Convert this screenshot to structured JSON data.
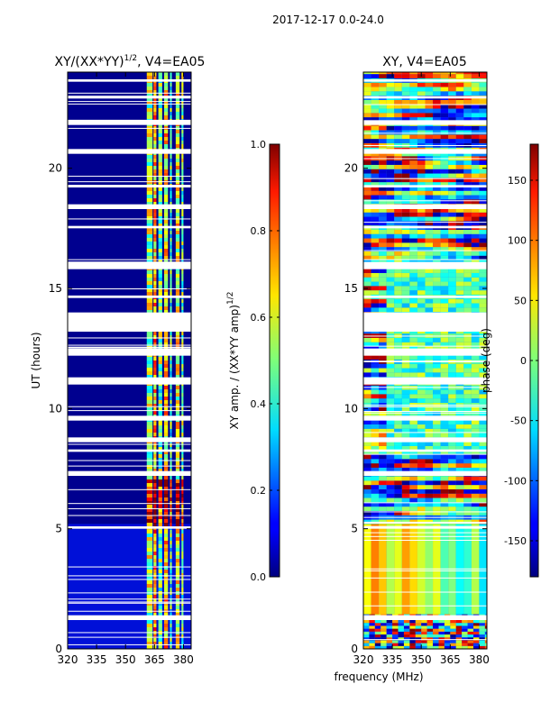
{
  "figure": {
    "suptitle": "2017-12-17 0.0-24.0",
    "shared_xlabel": "frequency (MHz)"
  },
  "chart_data": [
    {
      "type": "heatmap",
      "title": "XY/(XX*YY)",
      "title_exponent": "1/2",
      "title_suffix": ", V4=EA05",
      "xlabel": "",
      "ylabel": "UT (hours)",
      "xlim": [
        320,
        384
      ],
      "ylim": [
        0,
        24
      ],
      "xticks": [
        "320",
        "335",
        "350",
        "365",
        "380"
      ],
      "yticks": [
        "0",
        "5",
        "10",
        "15",
        "20"
      ],
      "colorbar": {
        "label": "XY amp. / (XX*YY amp)",
        "label_exponent": "1/2",
        "range": [
          0.0,
          1.0
        ],
        "ticks": [
          "0.0",
          "0.2",
          "0.4",
          "0.6",
          "0.8",
          "1.0"
        ],
        "colormap": "jet"
      }
    },
    {
      "type": "heatmap",
      "title": "XY, V4=EA05",
      "xlabel": "frequency (MHz)",
      "ylabel": "",
      "xlim": [
        320,
        384
      ],
      "ylim": [
        0,
        24
      ],
      "xticks": [
        "320",
        "335",
        "350",
        "365",
        "380"
      ],
      "yticks": [
        "0",
        "5",
        "10",
        "15",
        "20"
      ],
      "colorbar": {
        "label": "phase (deg)",
        "range": [
          -180,
          180
        ],
        "ticks": [
          "-150",
          "-100",
          "-50",
          "0",
          "50",
          "100",
          "150"
        ],
        "colormap": "jet"
      }
    }
  ]
}
